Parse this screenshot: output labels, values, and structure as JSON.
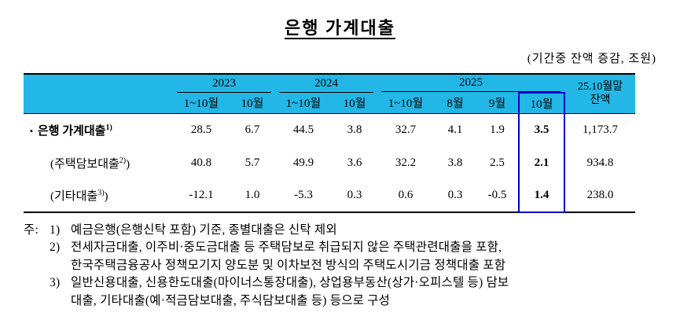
{
  "title": "은행 가계대출",
  "unit_note": "(기간중 잔액 증감, 조원)",
  "table": {
    "year_groups": [
      {
        "label": "2023"
      },
      {
        "label": "2024"
      },
      {
        "label": "2025"
      }
    ],
    "period_headers": [
      "1~10월",
      "10월",
      "1~10월",
      "10월",
      "1~10월",
      "8월",
      "9월",
      "10월"
    ],
    "balance_header": {
      "line1": "25.10월말",
      "line2": "잔액"
    },
    "rows": [
      {
        "bullet": "▪",
        "label": "은행 가계대출",
        "sup": "1)",
        "values": [
          "28.5",
          "6.7",
          "44.5",
          "3.8",
          "32.7",
          "4.1",
          "1.9",
          "3.5",
          "1,173.7"
        ]
      },
      {
        "label": "(주택담보대출",
        "sup": "2)",
        "suffix": ")",
        "values": [
          "40.8",
          "5.7",
          "49.9",
          "3.6",
          "32.2",
          "3.8",
          "2.5",
          "2.1",
          "934.8"
        ]
      },
      {
        "label": "(기타대출",
        "sup": "3)",
        "suffix": ")",
        "values": [
          "-12.1",
          "1.0",
          "-5.3",
          "0.3",
          "0.6",
          "0.3",
          "-0.5",
          "1.4",
          "238.0"
        ]
      }
    ]
  },
  "notes": {
    "prefix": "주:",
    "items": [
      {
        "num": "1)",
        "lines": [
          "예금은행(은행신탁 포함) 기준, 종별대출은 신탁 제외"
        ]
      },
      {
        "num": "2)",
        "lines": [
          "전세자금대출, 이주비·중도금대출 등 주택담보로 취급되지 않은 주택관련대출을 포함,",
          "한국주택금융공사 정책모기지 양도분 및 이차보전 방식의 주택도시기금 정책대출 포함"
        ]
      },
      {
        "num": "3)",
        "lines": [
          "일반신용대출, 신용한도대출(마이너스통장대출), 상업용부동산(상가·오피스텔 등) 담보",
          "대출, 기타대출(예·적금담보대출, 주식담보대출 등) 등으로 구성"
        ]
      }
    ]
  },
  "colors": {
    "header_bg": "#22B7E6",
    "highlight_border": "#0000CD"
  }
}
